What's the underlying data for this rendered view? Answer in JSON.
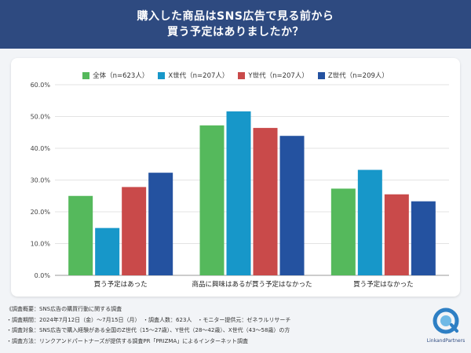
{
  "header": {
    "line1": "購入した商品はSNS広告で見る前から",
    "line2": "買う予定はありましたか？"
  },
  "chart_data": {
    "type": "bar",
    "categories": [
      "買う予定はあった",
      "商品に興味はあるが買う予定はなかった",
      "買う予定はなかった"
    ],
    "series": [
      {
        "name": "全体（n=623人）",
        "color": "#55b95c",
        "values": [
          25.0,
          47.2,
          27.3
        ]
      },
      {
        "name": "X世代（n=207人）",
        "color": "#1797c9",
        "values": [
          14.9,
          51.6,
          33.2
        ]
      },
      {
        "name": "Y世代（n=207人）",
        "color": "#c94a4a",
        "values": [
          27.8,
          46.4,
          25.5
        ]
      },
      {
        "name": "Z世代（n=209人）",
        "color": "#2452a0",
        "values": [
          32.3,
          43.9,
          23.3
        ]
      }
    ],
    "yticks": [
      "0.0%",
      "10.0%",
      "20.0%",
      "30.0%",
      "40.0%",
      "50.0%",
      "60.0%"
    ],
    "ylim": [
      0,
      60
    ],
    "grid": true,
    "legend": "top"
  },
  "notes": [
    "《調査概要：SNS広告の購買行動に関する調査",
    "・調査期間：2024年7月12日（金）〜7月15日（月）　・調査人数：623人　・モニター提供元：ゼネラルリサーチ",
    "・調査対象：SNS広告で購入経験がある全国のZ世代（15〜27歳）、Y世代（28〜42歳）、X世代（43〜58歳）の方",
    "・調査方法：リンクアンドパートナーズが提供する調査PR「PRIZMA」によるインターネット調査"
  ],
  "logo": {
    "text": "LinkandPartners"
  }
}
